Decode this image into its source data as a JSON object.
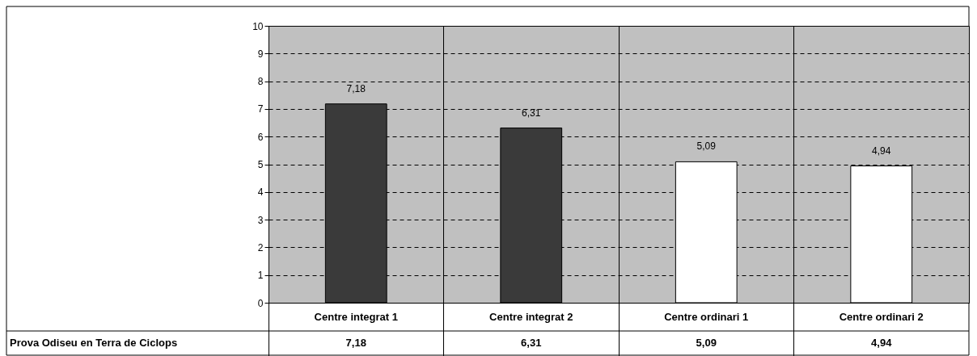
{
  "chart_data": {
    "type": "bar",
    "categories": [
      "Centre integrat 1",
      "Centre integrat 2",
      "Centre ordinari 1",
      "Centre ordinari 2"
    ],
    "series": [
      {
        "name": "Prova Odiseu en Terra de Ciclops",
        "values": [
          7.18,
          6.31,
          5.09,
          4.94
        ],
        "value_labels": [
          "7,18",
          "6,31",
          "5,09",
          "4,94"
        ]
      }
    ],
    "colors": [
      "#3a3a3a",
      "#3a3a3a",
      "#ffffff",
      "#ffffff"
    ],
    "ylim": [
      0,
      10
    ],
    "yticks": [
      0,
      1,
      2,
      3,
      4,
      5,
      6,
      7,
      8,
      9,
      10
    ],
    "grid": true,
    "data_labels": true
  }
}
